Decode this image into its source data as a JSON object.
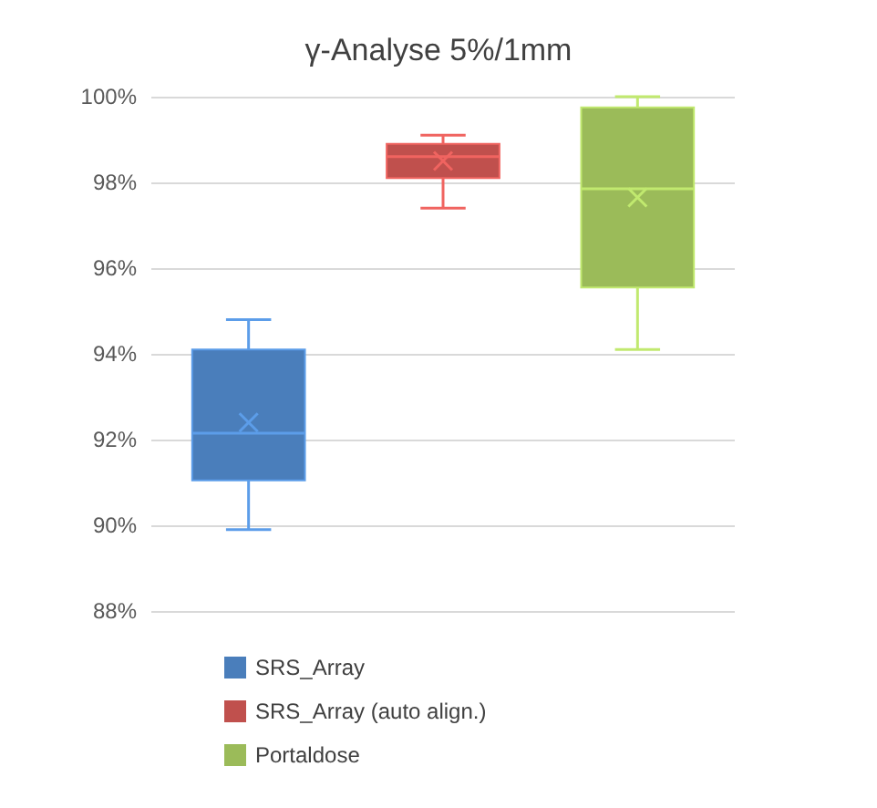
{
  "chart_data": {
    "type": "box",
    "title": "γ-Analyse 5%/1mm",
    "categories": [
      null,
      null,
      null
    ],
    "series": [
      {
        "name": "SRS_Array",
        "color": "#4a7ebb",
        "boxes": [
          {
            "low": 89.9,
            "q1": 91.05,
            "median": 92.15,
            "q3": 94.1,
            "high": 94.8,
            "mean": 92.4
          },
          null,
          null
        ]
      },
      {
        "name": "SRS_Array (auto align.)",
        "color": "#c0504d",
        "boxes": [
          null,
          {
            "low": 97.4,
            "q1": 98.1,
            "median": 98.6,
            "q3": 98.9,
            "high": 99.1,
            "mean": 98.5
          },
          null
        ]
      },
      {
        "name": "Portaldose",
        "color": "#9bbb59",
        "boxes": [
          null,
          null,
          {
            "low": 94.1,
            "q1": 95.55,
            "median": 97.85,
            "q3": 99.75,
            "high": 100,
            "mean": 97.65
          }
        ]
      }
    ],
    "ylim": [
      88,
      100
    ],
    "yticks": [
      {
        "value": 88,
        "label": "88%"
      },
      {
        "value": 90,
        "label": "90%"
      },
      {
        "value": 92,
        "label": "92%"
      },
      {
        "value": 94,
        "label": "94%"
      },
      {
        "value": 96,
        "label": "96%"
      },
      {
        "value": 98,
        "label": "98%"
      },
      {
        "value": 100,
        "label": "100%"
      }
    ],
    "grid": "y",
    "legend": "bottom",
    "tick_labels": "y"
  }
}
